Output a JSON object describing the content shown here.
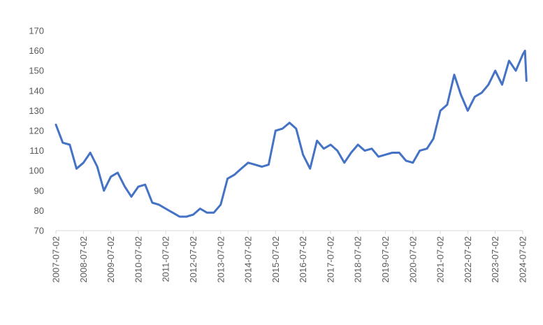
{
  "chart_data": {
    "type": "line",
    "title": "",
    "source_note": "",
    "xlabel": "",
    "ylabel": "",
    "ylim": [
      70,
      170
    ],
    "yticks": [
      70,
      80,
      90,
      100,
      110,
      120,
      130,
      140,
      150,
      160,
      170
    ],
    "xticks": [
      "2007-07-02",
      "2008-07-02",
      "2009-07-02",
      "2010-07-02",
      "2011-07-02",
      "2012-07-02",
      "2013-07-02",
      "2014-07-02",
      "2015-07-02",
      "2016-07-02",
      "2017-07-02",
      "2018-07-02",
      "2019-07-02",
      "2020-07-02",
      "2021-07-02",
      "2022-07-02",
      "2023-07-02",
      "2024-07-02"
    ],
    "grid": false,
    "line_color": "#4472C4",
    "series": [
      {
        "x": [
          "2007-07-02",
          "2007-10-01",
          "2008-01-02",
          "2008-04-01",
          "2008-07-02",
          "2008-10-01",
          "2009-01-02",
          "2009-04-01",
          "2009-07-02",
          "2009-10-01",
          "2010-01-04",
          "2010-04-01",
          "2010-07-02",
          "2010-10-01",
          "2011-01-04",
          "2011-04-01",
          "2011-07-01",
          "2011-10-03",
          "2012-01-03",
          "2012-04-02",
          "2012-07-02",
          "2012-10-01",
          "2013-01-02",
          "2013-04-01",
          "2013-07-02",
          "2013-10-01",
          "2014-01-02",
          "2014-04-01",
          "2014-07-02",
          "2014-10-01",
          "2015-01-02",
          "2015-04-01",
          "2015-07-02",
          "2015-10-01",
          "2016-01-04",
          "2016-04-01",
          "2016-07-01",
          "2016-10-03",
          "2017-01-03",
          "2017-04-03",
          "2017-07-03",
          "2017-10-02",
          "2018-01-02",
          "2018-04-02",
          "2018-07-02",
          "2018-10-01",
          "2019-01-02",
          "2019-04-01",
          "2019-07-02",
          "2019-10-01",
          "2020-01-02",
          "2020-04-01",
          "2020-07-02",
          "2020-10-01",
          "2021-01-04",
          "2021-04-01",
          "2021-07-02",
          "2021-10-01",
          "2022-01-03",
          "2022-04-01",
          "2022-07-01",
          "2022-10-03",
          "2023-01-03",
          "2023-04-03",
          "2023-07-03",
          "2023-10-02",
          "2024-01-02",
          "2024-04-01",
          "2024-07-01",
          "2024-08-01",
          "2024-08-20"
        ],
        "values": [
          123,
          114,
          113,
          101,
          104,
          109,
          102,
          90,
          97,
          99,
          92,
          87,
          92,
          93,
          84,
          83,
          81,
          79,
          77,
          77,
          78,
          81,
          79,
          79,
          83,
          96,
          98,
          101,
          104,
          103,
          102,
          103,
          120,
          121,
          124,
          121,
          108,
          101,
          115,
          111,
          113,
          110,
          104,
          109,
          113,
          110,
          111,
          107,
          108,
          109,
          109,
          105,
          104,
          110,
          111,
          116,
          130,
          133,
          148,
          138,
          130,
          137,
          139,
          143,
          150,
          143,
          155,
          150,
          158,
          160,
          145
        ]
      }
    ]
  }
}
